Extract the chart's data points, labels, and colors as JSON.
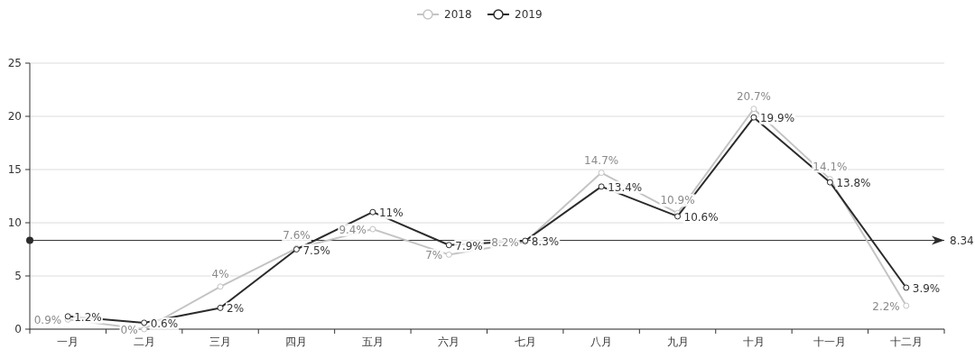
{
  "chart_data": {
    "type": "line",
    "categories": [
      "一月",
      "二月",
      "三月",
      "四月",
      "五月",
      "六月",
      "七月",
      "八月",
      "九月",
      "十月",
      "十一月",
      "十二月"
    ],
    "series": [
      {
        "name": "2018",
        "color": "#c4c4c4",
        "values": [
          0.9,
          0,
          4,
          7.6,
          9.4,
          7,
          8.2,
          14.7,
          10.9,
          20.7,
          14.1,
          2.2
        ],
        "value_labels": [
          "0.9%",
          "0%",
          "4%",
          "7.6%",
          "9.4%",
          "7%",
          "8.2%",
          "14.7%",
          "10.9%",
          "20.7%",
          "14.1%",
          "2.2%"
        ]
      },
      {
        "name": "2019",
        "color": "#2b2b2b",
        "values": [
          1.2,
          0.6,
          2,
          7.5,
          11,
          7.9,
          8.3,
          13.4,
          10.6,
          19.9,
          13.8,
          3.9
        ],
        "value_labels": [
          "1.2%",
          "0.6%",
          "2%",
          "7.5%",
          "11%",
          "7.9%",
          "8.3%",
          "13.4%",
          "10.6%",
          "19.9%",
          "13.8%",
          "3.9%"
        ]
      }
    ],
    "ylim": [
      0,
      25
    ],
    "yticks": [
      0,
      5,
      10,
      15,
      20,
      25
    ],
    "grid": "y",
    "legend": "top",
    "marker": "circle",
    "ref_lines": [
      {
        "axis": "y",
        "value": 8.34,
        "label": "8.34",
        "color": "#2b2b2b"
      }
    ]
  }
}
